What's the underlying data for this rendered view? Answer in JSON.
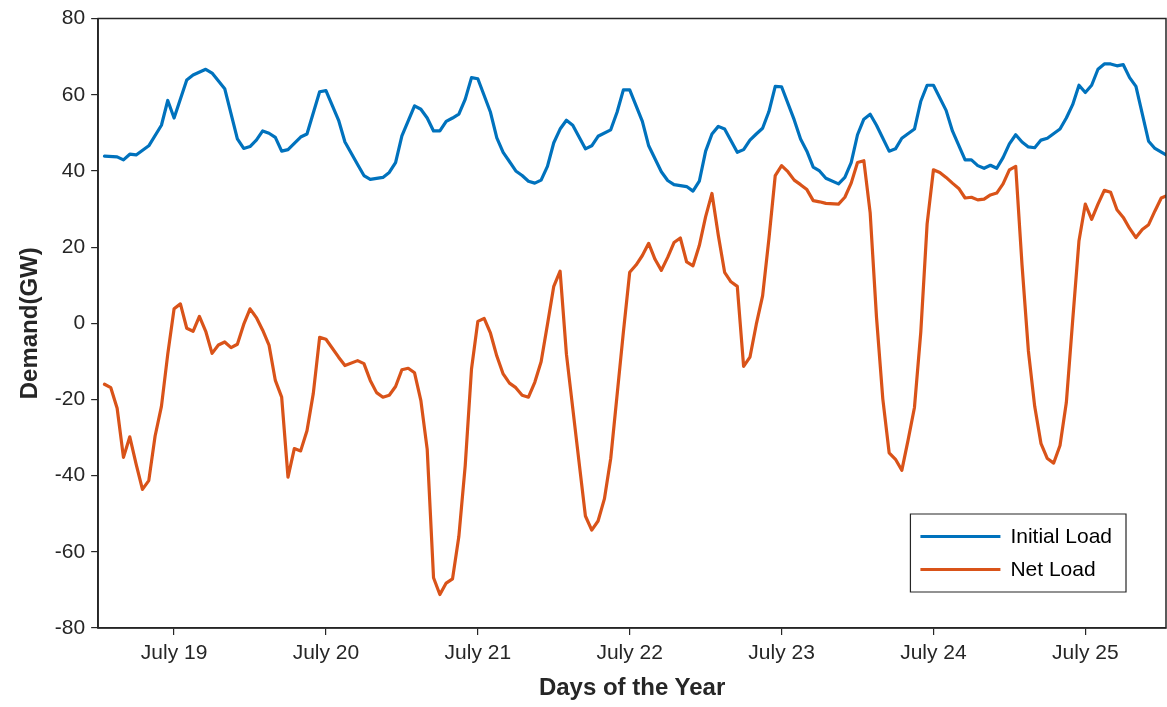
{
  "chart_data": {
    "type": "line",
    "xlabel": "Days of the Year",
    "ylabel": "Demand(GW)",
    "xlim": [
      "--07-18T12:00",
      "--07-25T12:45"
    ],
    "ylim": [
      -80,
      80
    ],
    "xticks": [
      {
        "value": "--07-19",
        "label": "July 19"
      },
      {
        "value": "--07-20",
        "label": "July 20"
      },
      {
        "value": "--07-21",
        "label": "July 21"
      },
      {
        "value": "--07-22",
        "label": "July 22"
      },
      {
        "value": "--07-23",
        "label": "July 23"
      },
      {
        "value": "--07-24",
        "label": "July 24"
      },
      {
        "value": "--07-25",
        "label": "July 25"
      }
    ],
    "yticks": [
      -80,
      -60,
      -40,
      -20,
      0,
      20,
      40,
      60,
      80
    ],
    "legend": "bottom right",
    "marker": "none",
    "line_style": "solid",
    "series": [
      {
        "name": "Initial Load",
        "color": "#0072bd",
        "x": [
          "--07-18T13:00",
          "--07-18T15:00",
          "--07-18T16:00",
          "--07-18T17:00",
          "--07-18T18:00",
          "--07-18T20:00",
          "--07-18T22:00",
          "--07-18T23:00",
          "--07-19T00:00",
          "--07-19T02:00",
          "--07-19T03:00",
          "--07-19T05:00",
          "--07-19T06:00",
          "--07-19T08:00",
          "--07-19T10:00",
          "--07-19T11:00",
          "--07-19T12:00",
          "--07-19T13:00",
          "--07-19T14:00",
          "--07-19T15:00",
          "--07-19T16:00",
          "--07-19T17:00",
          "--07-19T18:00",
          "--07-19T20:00",
          "--07-19T21:00",
          "--07-19T23:00",
          "--07-20T00:00",
          "--07-20T02:00",
          "--07-20T03:00",
          "--07-20T05:00",
          "--07-20T06:00",
          "--07-20T07:00",
          "--07-20T09:00",
          "--07-20T10:00",
          "--07-20T11:00",
          "--07-20T12:00",
          "--07-20T14:00",
          "--07-20T15:00",
          "--07-20T16:00",
          "--07-20T17:00",
          "--07-20T18:00",
          "--07-20T19:00",
          "--07-20T20:00",
          "--07-20T21:00",
          "--07-20T22:00",
          "--07-20T23:00",
          "--07-21T00:00",
          "--07-21T02:00",
          "--07-21T03:00",
          "--07-21T04:00",
          "--07-21T06:00",
          "--07-21T07:00",
          "--07-21T08:00",
          "--07-21T09:00",
          "--07-21T10:00",
          "--07-21T11:00",
          "--07-21T12:00",
          "--07-21T13:00",
          "--07-21T14:00",
          "--07-21T15:00",
          "--07-21T17:00",
          "--07-21T18:00",
          "--07-21T19:00",
          "--07-21T21:00",
          "--07-21T22:00",
          "--07-21T23:00",
          "--07-22T00:00",
          "--07-22T02:00",
          "--07-22T03:00",
          "--07-22T05:00",
          "--07-22T06:00",
          "--07-22T07:00",
          "--07-22T09:00",
          "--07-22T10:00",
          "--07-22T11:00",
          "--07-22T12:00",
          "--07-22T13:00",
          "--07-22T14:00",
          "--07-22T15:00",
          "--07-22T17:00",
          "--07-22T18:00",
          "--07-22T19:00",
          "--07-22T20:00",
          "--07-22T21:00",
          "--07-22T22:00",
          "--07-22T23:00",
          "--07-23T00:00",
          "--07-23T02:00",
          "--07-23T03:00",
          "--07-23T04:00",
          "--07-23T05:00",
          "--07-23T06:00",
          "--07-23T07:00",
          "--07-23T09:00",
          "--07-23T10:00",
          "--07-23T11:00",
          "--07-23T12:00",
          "--07-23T13:00",
          "--07-23T14:00",
          "--07-23T15:00",
          "--07-23T17:00",
          "--07-23T18:00",
          "--07-23T19:00",
          "--07-23T21:00",
          "--07-23T22:00",
          "--07-23T23:00",
          "--07-24T00:00",
          "--07-24T02:00",
          "--07-24T03:00",
          "--07-24T05:00",
          "--07-24T06:00",
          "--07-24T07:00",
          "--07-24T08:00",
          "--07-24T09:00",
          "--07-24T10:00",
          "--07-24T11:00",
          "--07-24T12:00",
          "--07-24T13:00",
          "--07-24T14:00",
          "--07-24T15:00",
          "--07-24T16:00",
          "--07-24T17:00",
          "--07-24T18:00",
          "--07-24T20:00",
          "--07-24T21:00",
          "--07-24T22:00",
          "--07-24T23:00",
          "--07-25T00:00",
          "--07-25T01:00",
          "--07-25T02:00",
          "--07-25T03:00",
          "--07-25T04:00",
          "--07-25T05:00",
          "--07-25T06:00",
          "--07-25T07:00",
          "--07-25T08:00",
          "--07-25T10:00",
          "--07-25T11:00",
          "--07-25T12:45"
        ],
        "values": [
          43.9,
          43.7,
          42.9,
          44.4,
          44.2,
          46.6,
          52.0,
          58.5,
          53.9,
          63.9,
          65.2,
          66.7,
          65.7,
          61.6,
          48.4,
          45.9,
          46.4,
          48.1,
          50.5,
          49.9,
          48.8,
          45.2,
          45.6,
          48.9,
          49.7,
          60.8,
          61.1,
          53.3,
          47.6,
          41.7,
          38.8,
          37.8,
          38.3,
          39.6,
          42.2,
          49.2,
          57.1,
          56.2,
          53.9,
          50.5,
          50.5,
          53.0,
          53.9,
          54.9,
          58.8,
          64.5,
          64.2,
          55.4,
          48.7,
          44.9,
          40.0,
          38.8,
          37.3,
          36.8,
          37.6,
          41.2,
          47.4,
          51.0,
          53.3,
          52.0,
          45.8,
          46.6,
          49.1,
          50.8,
          55.4,
          61.3,
          61.3,
          53.0,
          46.6,
          39.8,
          37.5,
          36.4,
          35.9,
          34.7,
          37.3,
          45.2,
          49.7,
          51.7,
          51.0,
          44.9,
          45.6,
          48.1,
          49.7,
          51.2,
          55.6,
          62.2,
          62.1,
          53.4,
          48.4,
          45.2,
          41.0,
          40.0,
          38.1,
          36.6,
          38.3,
          42.2,
          49.5,
          53.6,
          54.9,
          52.0,
          45.2,
          45.8,
          48.6,
          51.0,
          58.3,
          62.5,
          62.5,
          55.9,
          50.5,
          42.9,
          42.9,
          41.4,
          40.7,
          41.5,
          40.7,
          43.5,
          47.1,
          49.5,
          47.6,
          46.3,
          46.1,
          48.1,
          48.6,
          51.0,
          53.9,
          57.4,
          62.5,
          60.6,
          62.5,
          66.7,
          68.1,
          68.1,
          67.6,
          67.9,
          64.5,
          62.2,
          47.8,
          45.9,
          44.2
        ]
      },
      {
        "name": "Net Load",
        "color": "#d95319",
        "x": [
          "--07-18T13:00",
          "--07-18T14:00",
          "--07-18T15:00",
          "--07-18T16:00",
          "--07-18T17:00",
          "--07-18T18:00",
          "--07-18T19:00",
          "--07-18T20:00",
          "--07-18T21:00",
          "--07-18T22:00",
          "--07-18T23:00",
          "--07-19T00:00",
          "--07-19T01:00",
          "--07-19T02:00",
          "--07-19T03:00",
          "--07-19T04:00",
          "--07-19T05:00",
          "--07-19T06:00",
          "--07-19T07:00",
          "--07-19T08:00",
          "--07-19T09:00",
          "--07-19T10:00",
          "--07-19T11:00",
          "--07-19T12:00",
          "--07-19T13:00",
          "--07-19T14:00",
          "--07-19T15:00",
          "--07-19T16:00",
          "--07-19T17:00",
          "--07-19T18:00",
          "--07-19T19:00",
          "--07-19T20:00",
          "--07-19T21:00",
          "--07-19T22:00",
          "--07-19T23:00",
          "--07-20T00:00",
          "--07-20T02:00",
          "--07-20T03:00",
          "--07-20T05:00",
          "--07-20T06:00",
          "--07-20T07:00",
          "--07-20T08:00",
          "--07-20T09:00",
          "--07-20T10:00",
          "--07-20T11:00",
          "--07-20T12:00",
          "--07-20T13:00",
          "--07-20T14:00",
          "--07-20T15:00",
          "--07-20T16:00",
          "--07-20T17:00",
          "--07-20T18:00",
          "--07-20T19:00",
          "--07-20T20:00",
          "--07-20T21:00",
          "--07-20T22:00",
          "--07-20T23:00",
          "--07-21T00:00",
          "--07-21T01:00",
          "--07-21T02:00",
          "--07-21T03:00",
          "--07-21T04:00",
          "--07-21T05:00",
          "--07-21T06:00",
          "--07-21T07:00",
          "--07-21T08:00",
          "--07-21T09:00",
          "--07-21T10:00",
          "--07-21T11:00",
          "--07-21T12:00",
          "--07-21T13:00",
          "--07-21T14:00",
          "--07-21T16:00",
          "--07-21T17:00",
          "--07-21T18:00",
          "--07-21T19:00",
          "--07-21T20:00",
          "--07-21T21:00",
          "--07-21T22:00",
          "--07-21T23:00",
          "--07-22T00:00",
          "--07-22T01:00",
          "--07-22T02:00",
          "--07-22T03:00",
          "--07-22T04:00",
          "--07-22T05:00",
          "--07-22T06:00",
          "--07-22T07:00",
          "--07-22T08:00",
          "--07-22T09:00",
          "--07-22T10:00",
          "--07-22T11:00",
          "--07-22T12:00",
          "--07-22T13:00",
          "--07-22T14:00",
          "--07-22T15:00",
          "--07-22T16:00",
          "--07-22T17:00",
          "--07-22T18:00",
          "--07-22T19:00",
          "--07-22T20:00",
          "--07-22T21:00",
          "--07-22T22:00",
          "--07-22T23:00",
          "--07-23T00:00",
          "--07-23T01:00",
          "--07-23T02:00",
          "--07-23T03:00",
          "--07-23T04:00",
          "--07-23T05:00",
          "--07-23T06:00",
          "--07-23T07:00",
          "--07-23T09:00",
          "--07-23T10:00",
          "--07-23T11:00",
          "--07-23T12:00",
          "--07-23T13:00",
          "--07-23T14:00",
          "--07-23T15:00",
          "--07-23T16:00",
          "--07-23T17:00",
          "--07-23T18:00",
          "--07-23T19:00",
          "--07-23T20:00",
          "--07-23T21:00",
          "--07-23T22:00",
          "--07-23T23:00",
          "--07-24T00:00",
          "--07-24T01:00",
          "--07-24T02:00",
          "--07-24T03:00",
          "--07-24T04:00",
          "--07-24T05:00",
          "--07-24T06:00",
          "--07-24T07:00",
          "--07-24T08:00",
          "--07-24T09:00",
          "--07-24T10:00",
          "--07-24T11:00",
          "--07-24T12:00",
          "--07-24T13:00",
          "--07-24T14:00",
          "--07-24T15:00",
          "--07-24T16:00",
          "--07-24T17:00",
          "--07-24T18:00",
          "--07-24T19:00",
          "--07-24T20:00",
          "--07-24T21:00",
          "--07-24T22:00",
          "--07-24T23:00",
          "--07-25T00:00",
          "--07-25T01:00",
          "--07-25T02:00",
          "--07-25T03:00",
          "--07-25T04:00",
          "--07-25T05:00",
          "--07-25T06:00",
          "--07-25T07:00",
          "--07-25T08:00",
          "--07-25T09:00",
          "--07-25T10:00",
          "--07-25T11:00",
          "--07-25T12:00",
          "--07-25T12:45"
        ],
        "values": [
          -16.0,
          -16.9,
          -22.3,
          -35.2,
          -29.8,
          -37.0,
          -43.6,
          -41.3,
          -29.6,
          -21.8,
          -8.1,
          3.8,
          5.1,
          -1.3,
          -2.1,
          1.8,
          -2.1,
          -7.9,
          -5.7,
          -4.9,
          -6.4,
          -5.5,
          -0.3,
          3.8,
          1.5,
          -1.8,
          -5.7,
          -15.0,
          -19.4,
          -40.4,
          -32.9,
          -33.5,
          -28.2,
          -18.4,
          -3.7,
          -4.2,
          -8.9,
          -11.1,
          -9.8,
          -10.6,
          -15.0,
          -18.2,
          -19.4,
          -18.9,
          -16.6,
          -12.2,
          -11.8,
          -13.0,
          -20.3,
          -33.1,
          -66.8,
          -71.2,
          -68.2,
          -67.1,
          -56.0,
          -37.5,
          -12.0,
          0.5,
          1.3,
          -2.6,
          -8.6,
          -13.3,
          -15.7,
          -16.9,
          -18.9,
          -19.4,
          -15.5,
          -10.1,
          -0.3,
          9.7,
          13.7,
          -8.1,
          -36.5,
          -50.6,
          -54.3,
          -51.9,
          -46.1,
          -35.5,
          -18.9,
          -2.3,
          13.4,
          15.3,
          17.8,
          21.0,
          16.8,
          13.9,
          17.3,
          21.2,
          22.4,
          16.1,
          15.1,
          20.4,
          28.0,
          34.1,
          23.1,
          13.4,
          10.9,
          9.7,
          -11.3,
          -8.9,
          -0.3,
          7.2,
          22.2,
          38.8,
          41.4,
          39.8,
          37.6,
          36.4,
          35.1,
          32.2,
          31.9,
          31.5,
          31.3,
          33.1,
          36.8,
          42.2,
          42.7,
          29.0,
          1.6,
          -19.9,
          -34.0,
          -35.7,
          -38.6,
          -30.6,
          -22.1,
          -2.3,
          26.1,
          40.3,
          39.6,
          38.3,
          36.8,
          35.4,
          32.9,
          33.1,
          32.4,
          32.6,
          33.7,
          34.2,
          36.6,
          40.3,
          41.2,
          15.3,
          -7.2,
          -21.8,
          -31.6,
          -35.5,
          -36.7,
          -32.1,
          -20.8,
          0.7,
          21.7,
          31.3,
          27.3,
          31.3,
          34.9,
          34.4,
          29.8,
          27.8,
          24.9,
          22.5,
          24.6,
          25.9,
          29.5,
          32.9,
          33.4
        ]
      }
    ]
  }
}
